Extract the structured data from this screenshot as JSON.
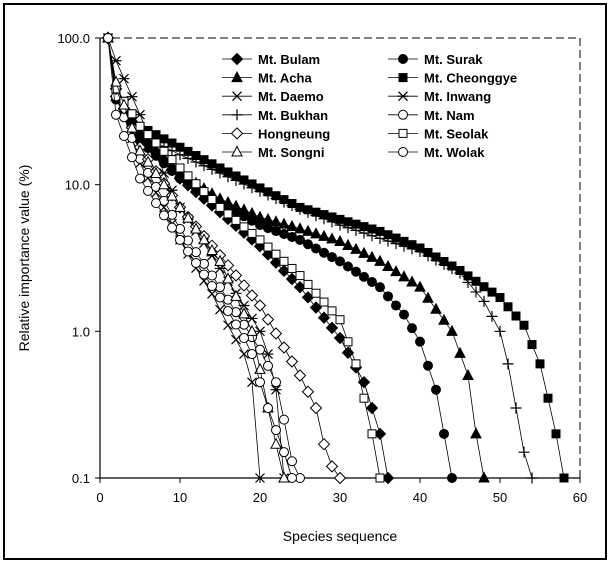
{
  "chart_data": {
    "type": "line",
    "title": "",
    "xlabel": "Species sequence",
    "ylabel": "Relative importance value (%)",
    "xlim": [
      0,
      60
    ],
    "ylim": [
      0.1,
      100
    ],
    "yscale": "log",
    "xticks": [
      "0",
      "10",
      "20",
      "30",
      "40",
      "50",
      "60"
    ],
    "yticks": [
      "0.1",
      "1.0",
      "10.0",
      "100.0"
    ],
    "grid": false,
    "legend_position": "top-right",
    "series": [
      {
        "name": "Mt. Bulam",
        "marker": "diamond-filled",
        "x": [
          1,
          2,
          5,
          10,
          15,
          20,
          25,
          30,
          33,
          34,
          35,
          36
        ],
        "y": [
          100,
          40,
          22,
          11,
          6.5,
          3.8,
          2.0,
          0.9,
          0.45,
          0.3,
          0.2,
          0.1
        ]
      },
      {
        "name": "Mt. Surak",
        "marker": "circle-filled",
        "x": [
          1,
          2,
          5,
          10,
          15,
          20,
          25,
          30,
          35,
          38,
          40,
          42,
          43,
          44
        ],
        "y": [
          100,
          38,
          20,
          11,
          7.5,
          5.3,
          4.2,
          3.0,
          2.0,
          1.3,
          0.85,
          0.4,
          0.2,
          0.1
        ]
      },
      {
        "name": "Mt. Acha",
        "marker": "triangle-filled",
        "x": [
          1,
          2,
          5,
          10,
          15,
          20,
          25,
          30,
          35,
          40,
          44,
          46,
          47,
          48
        ],
        "y": [
          100,
          40,
          22,
          12,
          8.0,
          6.0,
          5.0,
          4.1,
          3.0,
          2.0,
          1.0,
          0.5,
          0.2,
          0.1
        ]
      },
      {
        "name": "Mt. Cheonggye",
        "marker": "square-filled",
        "x": [
          1,
          2,
          5,
          10,
          15,
          20,
          25,
          30,
          35,
          40,
          45,
          50,
          53,
          55,
          56,
          57,
          58
        ],
        "y": [
          100,
          45,
          25,
          18,
          13,
          9.5,
          7.0,
          5.8,
          4.8,
          3.7,
          2.6,
          1.7,
          1.1,
          0.6,
          0.35,
          0.2,
          0.1
        ]
      },
      {
        "name": "Mt. Daemo",
        "marker": "x",
        "x": [
          1,
          2,
          5,
          8,
          10,
          12,
          14,
          16,
          18,
          19,
          20
        ],
        "y": [
          100,
          45,
          14,
          7.0,
          4.2,
          2.7,
          1.8,
          1.1,
          0.7,
          0.45,
          0.1
        ]
      },
      {
        "name": "Mt. Inwang",
        "marker": "asterisk",
        "x": [
          1,
          2,
          5,
          8,
          10,
          13,
          16,
          18,
          20,
          21,
          22,
          23
        ],
        "y": [
          100,
          70,
          30,
          12,
          7.0,
          4.0,
          2.2,
          1.5,
          1.0,
          0.7,
          0.4,
          0.1
        ]
      },
      {
        "name": "Mt. Bukhan",
        "marker": "plus",
        "x": [
          1,
          2,
          5,
          10,
          15,
          20,
          25,
          30,
          35,
          40,
          45,
          48,
          50,
          51,
          52,
          53,
          54
        ],
        "y": [
          100,
          40,
          22,
          16,
          12,
          9.0,
          6.8,
          5.3,
          4.3,
          3.5,
          2.5,
          1.6,
          1.0,
          0.6,
          0.3,
          0.15,
          0.1
        ]
      },
      {
        "name": "Mt. Nam",
        "marker": "circle-open",
        "x": [
          1,
          2,
          5,
          10,
          15,
          20,
          22,
          23,
          24,
          25
        ],
        "y": [
          100,
          40,
          15,
          5.0,
          2.0,
          0.75,
          0.45,
          0.25,
          0.13,
          0.1
        ]
      },
      {
        "name": "Hongneung",
        "marker": "diamond-open",
        "x": [
          1,
          2,
          5,
          10,
          15,
          20,
          25,
          27,
          28,
          29,
          30
        ],
        "y": [
          100,
          45,
          18,
          7.0,
          3.3,
          1.5,
          0.5,
          0.3,
          0.17,
          0.12,
          0.1
        ]
      },
      {
        "name": "Mt. Seolak",
        "marker": "square-open",
        "x": [
          1,
          2,
          5,
          10,
          15,
          20,
          25,
          30,
          32,
          33,
          34,
          35
        ],
        "y": [
          100,
          45,
          25,
          13,
          7.0,
          4.2,
          2.4,
          1.2,
          0.6,
          0.35,
          0.2,
          0.1
        ]
      },
      {
        "name": "Mt. Songni",
        "marker": "triangle-open",
        "x": [
          1,
          2,
          5,
          10,
          15,
          19,
          20,
          21,
          22,
          23
        ],
        "y": [
          100,
          50,
          17,
          7.0,
          3.0,
          1.0,
          0.55,
          0.3,
          0.17,
          0.1
        ]
      },
      {
        "name": "Mt. Wolak",
        "marker": "circle-open",
        "x": [
          1,
          2,
          5,
          10,
          15,
          18,
          19,
          20,
          21,
          23,
          24
        ],
        "y": [
          100,
          30,
          11,
          4.2,
          1.7,
          0.9,
          0.7,
          0.45,
          0.3,
          0.15,
          0.1
        ]
      }
    ]
  }
}
